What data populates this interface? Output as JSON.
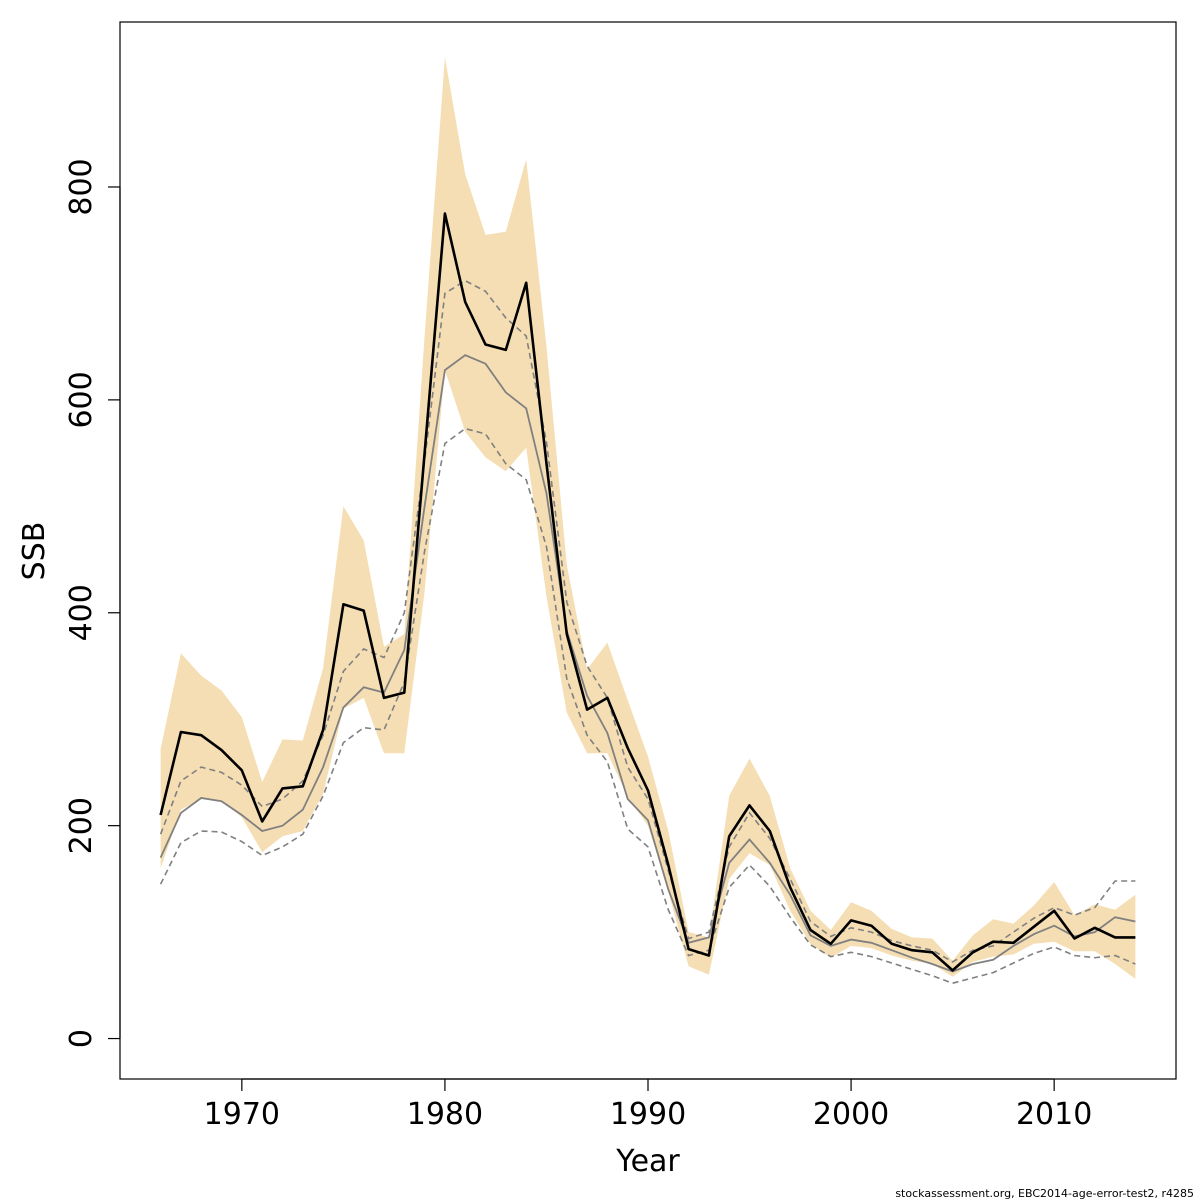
{
  "chart_data": {
    "type": "line",
    "xlabel": "Year",
    "ylabel": "SSB",
    "xlim": [
      1964,
      2016
    ],
    "ylim": [
      -38,
      955
    ],
    "x_ticks": [
      1970,
      1980,
      1990,
      2000,
      2010
    ],
    "y_ticks": [
      0,
      200,
      400,
      600,
      800
    ],
    "footer": "stockassessment.org, EBC2014-age-error-test2, r4285",
    "colors": {
      "band": "#f5deb3",
      "estimate": "#000000",
      "reference": "#808080",
      "reference_ci": "#808080"
    },
    "x": [
      1966,
      1967,
      1968,
      1969,
      1970,
      1971,
      1972,
      1973,
      1974,
      1975,
      1976,
      1977,
      1978,
      1979,
      1980,
      1981,
      1982,
      1983,
      1984,
      1985,
      1986,
      1987,
      1988,
      1989,
      1990,
      1991,
      1992,
      1993,
      1994,
      1995,
      1996,
      1997,
      1998,
      1999,
      2000,
      2001,
      2002,
      2003,
      2004,
      2005,
      2006,
      2007,
      2008,
      2009,
      2010,
      2011,
      2012,
      2013,
      2014
    ],
    "series": [
      {
        "role": "estimate",
        "values": [
          210,
          288,
          285,
          271,
          252,
          204,
          235,
          237,
          290,
          408,
          402,
          320,
          325,
          550,
          775,
          692,
          652,
          647,
          710,
          540,
          380,
          309,
          320,
          273,
          233,
          163,
          84,
          78,
          190,
          219,
          195,
          142,
          102,
          89,
          111,
          106,
          89,
          83,
          81,
          64,
          81,
          91,
          90,
          105,
          120,
          94,
          104,
          95,
          95
        ]
      },
      {
        "role": "estimate_lower",
        "values": [
          160,
          215,
          225,
          223,
          208,
          175,
          190,
          195,
          230,
          310,
          320,
          268,
          268,
          420,
          628,
          570,
          546,
          533,
          555,
          415,
          306,
          268,
          268,
          227,
          200,
          138,
          68,
          60,
          150,
          174,
          163,
          120,
          89,
          76,
          87,
          85,
          78,
          73,
          70,
          58,
          72,
          77,
          79,
          89,
          91,
          82,
          82,
          70,
          56
        ]
      },
      {
        "role": "estimate_upper",
        "values": [
          272,
          362,
          341,
          327,
          302,
          241,
          281,
          280,
          348,
          500,
          468,
          368,
          380,
          660,
          922,
          812,
          755,
          758,
          826,
          650,
          445,
          347,
          372,
          318,
          265,
          195,
          100,
          95,
          228,
          263,
          228,
          160,
          120,
          102,
          128,
          120,
          103,
          95,
          94,
          73,
          97,
          112,
          108,
          125,
          147,
          116,
          126,
          121,
          135
        ]
      },
      {
        "role": "reference",
        "values": [
          170,
          212,
          226,
          223,
          210,
          195,
          200,
          215,
          255,
          311,
          330,
          325,
          365,
          500,
          628,
          642,
          634,
          607,
          592,
          512,
          383,
          322,
          287,
          225,
          205,
          140,
          90,
          95,
          165,
          187,
          165,
          135,
          97,
          87,
          93,
          90,
          83,
          76,
          70,
          63,
          70,
          74,
          87,
          98,
          106,
          96,
          100,
          114,
          110
        ]
      },
      {
        "role": "reference_lower",
        "values": [
          145,
          184,
          195,
          194,
          185,
          172,
          180,
          192,
          228,
          278,
          292,
          290,
          335,
          458,
          559,
          573,
          568,
          540,
          525,
          462,
          338,
          285,
          260,
          197,
          180,
          121,
          78,
          83,
          142,
          163,
          143,
          114,
          88,
          77,
          81,
          77,
          71,
          65,
          59,
          52,
          57,
          62,
          71,
          80,
          86,
          78,
          76,
          78,
          70
        ]
      },
      {
        "role": "reference_upper",
        "values": [
          192,
          242,
          255,
          250,
          238,
          218,
          225,
          242,
          285,
          345,
          366,
          358,
          400,
          543,
          700,
          712,
          702,
          677,
          660,
          560,
          410,
          350,
          320,
          255,
          225,
          158,
          94,
          100,
          180,
          212,
          188,
          150,
          110,
          96,
          104,
          100,
          92,
          87,
          83,
          72,
          83,
          87,
          100,
          113,
          123,
          116,
          123,
          148,
          148
        ]
      }
    ]
  }
}
